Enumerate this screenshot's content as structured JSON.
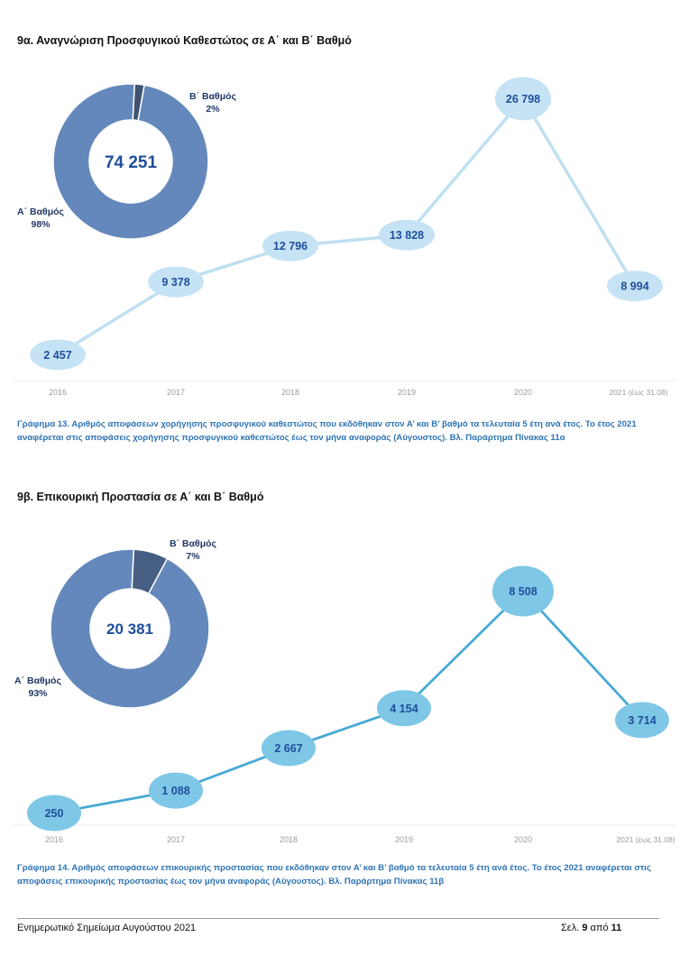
{
  "section_a": {
    "title": "9α. Αναγνώριση Προσφυγικού Καθεστώτος σε Α΄ και Β΄ Βαθμό",
    "caption": "Γράφημα 13. Αριθμός αποφάσεων χορήγησης προσφυγικού καθεστώτος που εκδόθηκαν στον Α’ και Β’ βαθμό τα τελευταία 5 έτη ανά έτος. Το έτος 2021 αναφέρεται στις αποφάσεις χορήγησης προσφυγικού καθεστώτος έως τον μήνα αναφοράς (Αύγουστος). Βλ. Παράρτημα Πίνακας 11α"
  },
  "section_b": {
    "title": "9β. Επικουρική Προστασία σε Α΄ και Β΄ Βαθμό",
    "caption": "Γράφημα 14. Αριθμός αποφάσεων επικουρικής προστασίας που εκδόθηκαν στον Α’ και Β’ βαθμό τα τελευταία 5 έτη ανά έτος. Το έτος 2021 αναφέρεται στις αποφάσεις επικουρικής προστασίας έως τον μήνα αναφοράς (Αύγουστος). Βλ. Παράρτημα Πίνακας 11β"
  },
  "footer": {
    "left": "Ενημερωτικό Σημείωμα Αυγούστου 2021",
    "page_prefix": "Σελ.",
    "page_current": "9",
    "page_of": "από",
    "page_total": "11"
  },
  "chart_data": [
    {
      "id": "chart-13",
      "type": "line",
      "categories": [
        "2016",
        "2017",
        "2018",
        "2019",
        "2020",
        "2021 (έως 31.08)"
      ],
      "values": [
        2457,
        9378,
        12796,
        13828,
        26798,
        8994
      ],
      "value_labels": [
        "2 457",
        "9 378",
        "12 796",
        "13 828",
        "26 798",
        "8 994"
      ],
      "ylim": [
        0,
        30000
      ],
      "line_color": "#bfe0f1",
      "bubble_color": "#c5e3f4",
      "label_color": "#1f4e9c",
      "grid": false,
      "donut": {
        "type": "pie",
        "total_label": "74 251",
        "slices": [
          {
            "label": "Α΄ Βαθμός",
            "percent_label": "98%",
            "value": 98,
            "color": "#6488bb"
          },
          {
            "label": "Β΄ Βαθμός",
            "percent_label": "2%",
            "value": 2,
            "color": "#3f5270"
          }
        ]
      }
    },
    {
      "id": "chart-14",
      "type": "line",
      "categories": [
        "2016",
        "2017",
        "2018",
        "2019",
        "2020",
        "2021 (έως 31.08)"
      ],
      "values": [
        250,
        1088,
        2667,
        4154,
        8508,
        3714
      ],
      "value_labels": [
        "250",
        "1 088",
        "2 667",
        "4 154",
        "8 508",
        "3 714"
      ],
      "ylim": [
        0,
        9500
      ],
      "line_color": "#48a9d4",
      "bubble_color": "#7fc7e6",
      "label_color": "#1f4e9c",
      "grid": false,
      "donut": {
        "type": "pie",
        "total_label": "20 381",
        "slices": [
          {
            "label": "Α΄ Βαθμός",
            "percent_label": "93%",
            "value": 93,
            "color": "#6488bb"
          },
          {
            "label": "Β΄ Βαθμός",
            "percent_label": "7%",
            "value": 7,
            "color": "#465e82"
          }
        ]
      }
    }
  ]
}
